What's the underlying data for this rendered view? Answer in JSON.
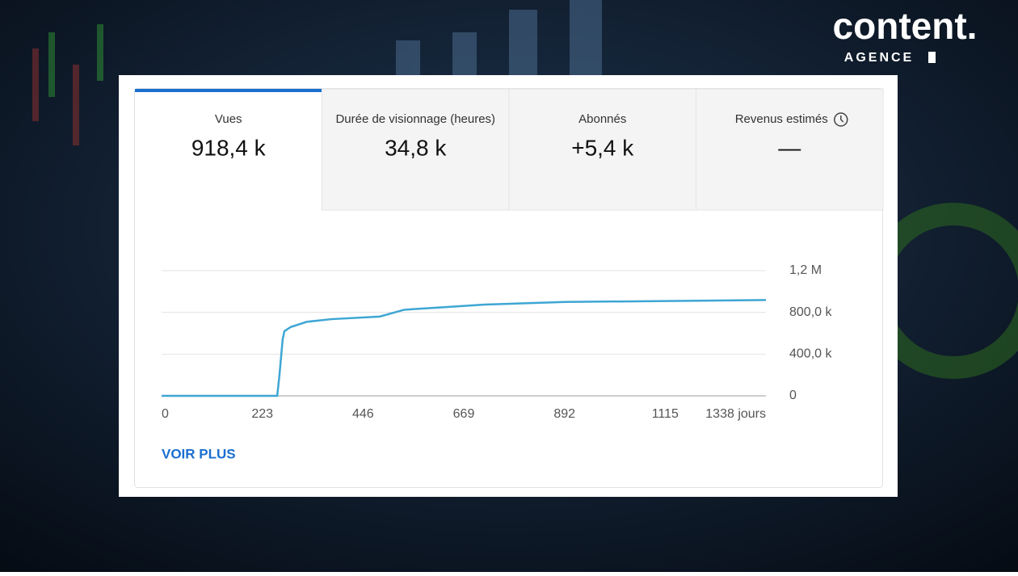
{
  "brand": {
    "name": "content.",
    "tagline": "AGENCE"
  },
  "tabs": [
    {
      "label": "Vues",
      "value": "918,4 k"
    },
    {
      "label": "Durée de visionnage (heures)",
      "value": "34,8 k"
    },
    {
      "label": "Abonnés",
      "value": "+5,4 k"
    },
    {
      "label": "Revenus estimés",
      "value": "—"
    }
  ],
  "chart_data": {
    "type": "line",
    "color": "#3ea6d4",
    "grid": true,
    "x": [
      0,
      256,
      261,
      268,
      272,
      286,
      322,
      376,
      483,
      537,
      626,
      716,
      894,
      1073,
      1338
    ],
    "values": [
      0,
      0,
      200000,
      540000,
      620000,
      660000,
      710000,
      735000,
      760000,
      825000,
      850000,
      875000,
      900000,
      907000,
      918400
    ],
    "xlim": [
      0,
      1338
    ],
    "xticks": [
      0,
      223,
      446,
      669,
      892,
      1115,
      {
        "value": 1338,
        "label": "1338 jours"
      }
    ],
    "ylim": [
      0,
      1200000
    ],
    "yticks": [
      0,
      {
        "value": 400000,
        "label": "400,0 k"
      },
      {
        "value": 800000,
        "label": "800,0 k"
      },
      {
        "value": 1200000,
        "label": "1,2 M"
      }
    ]
  },
  "button": "VOIR PLUS"
}
